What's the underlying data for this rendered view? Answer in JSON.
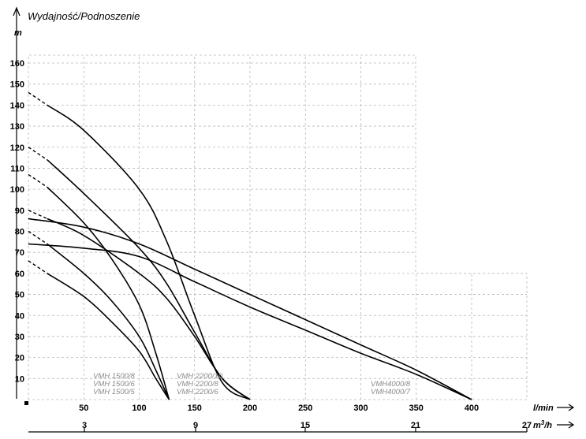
{
  "chart_data": {
    "type": "line",
    "title": "Wydajność/Podnoszenie",
    "ylabel": "m",
    "xlabel": "l/min",
    "x2label": "m",
    "x2label_sup": "3",
    "x2label_tail": "/h",
    "ylim": [
      0,
      170
    ],
    "xlim": [
      0,
      500
    ],
    "y_ticks": [
      "10",
      "20",
      "30",
      "40",
      "50",
      "60",
      "70",
      "80",
      "90",
      "100",
      "110",
      "120",
      "130",
      "140",
      "150",
      "160"
    ],
    "x_ticks": [
      "50",
      "100",
      "150",
      "200",
      "250",
      "300",
      "350",
      "400"
    ],
    "x2_ticks": [
      "3",
      "9",
      "15",
      "21",
      "27"
    ],
    "grid": true,
    "groups": [
      {
        "labels": [
          "VMH 1500/8",
          "VMH 1500/6",
          "VMH 1500/5"
        ]
      },
      {
        "labels": [
          "VMH 2200/10",
          "VMH 2200/8",
          "VMH 2200/6"
        ]
      },
      {
        "labels": [
          "VMH4000/8",
          "VMH4000/7"
        ]
      }
    ],
    "series": [
      {
        "points": [
          [
            0,
            146
          ],
          [
            17,
            140
          ],
          [
            50,
            128
          ],
          [
            100,
            100
          ],
          [
            125,
            75
          ],
          [
            150,
            40
          ],
          [
            175,
            8
          ],
          [
            200,
            0
          ]
        ]
      },
      {
        "points": [
          [
            0,
            120
          ],
          [
            17,
            114
          ],
          [
            50,
            98
          ],
          [
            100,
            72
          ],
          [
            125,
            55
          ],
          [
            150,
            32
          ],
          [
            175,
            10
          ],
          [
            200,
            0
          ]
        ]
      },
      {
        "points": [
          [
            0,
            90
          ],
          [
            17,
            86
          ],
          [
            50,
            78
          ],
          [
            100,
            60
          ],
          [
            125,
            48
          ],
          [
            150,
            30
          ],
          [
            175,
            10
          ],
          [
            200,
            0
          ]
        ]
      },
      {
        "points": [
          [
            0,
            107
          ],
          [
            17,
            101
          ],
          [
            50,
            84
          ],
          [
            75,
            67
          ],
          [
            100,
            45
          ],
          [
            115,
            22
          ],
          [
            127,
            0
          ]
        ]
      },
      {
        "points": [
          [
            0,
            80
          ],
          [
            17,
            74
          ],
          [
            50,
            60
          ],
          [
            75,
            47
          ],
          [
            100,
            30
          ],
          [
            115,
            14
          ],
          [
            127,
            0
          ]
        ]
      },
      {
        "points": [
          [
            0,
            66
          ],
          [
            17,
            60
          ],
          [
            50,
            49
          ],
          [
            75,
            37
          ],
          [
            100,
            23
          ],
          [
            115,
            10
          ],
          [
            127,
            0
          ]
        ]
      },
      {
        "points": [
          [
            0,
            86
          ],
          [
            50,
            82
          ],
          [
            100,
            74
          ],
          [
            150,
            62
          ],
          [
            200,
            50
          ],
          [
            250,
            38
          ],
          [
            300,
            26
          ],
          [
            350,
            14
          ],
          [
            400,
            0
          ]
        ]
      },
      {
        "points": [
          [
            0,
            74
          ],
          [
            50,
            72
          ],
          [
            100,
            68
          ],
          [
            150,
            56
          ],
          [
            200,
            44
          ],
          [
            250,
            33
          ],
          [
            300,
            22
          ],
          [
            350,
            12
          ],
          [
            400,
            0
          ]
        ]
      }
    ]
  }
}
